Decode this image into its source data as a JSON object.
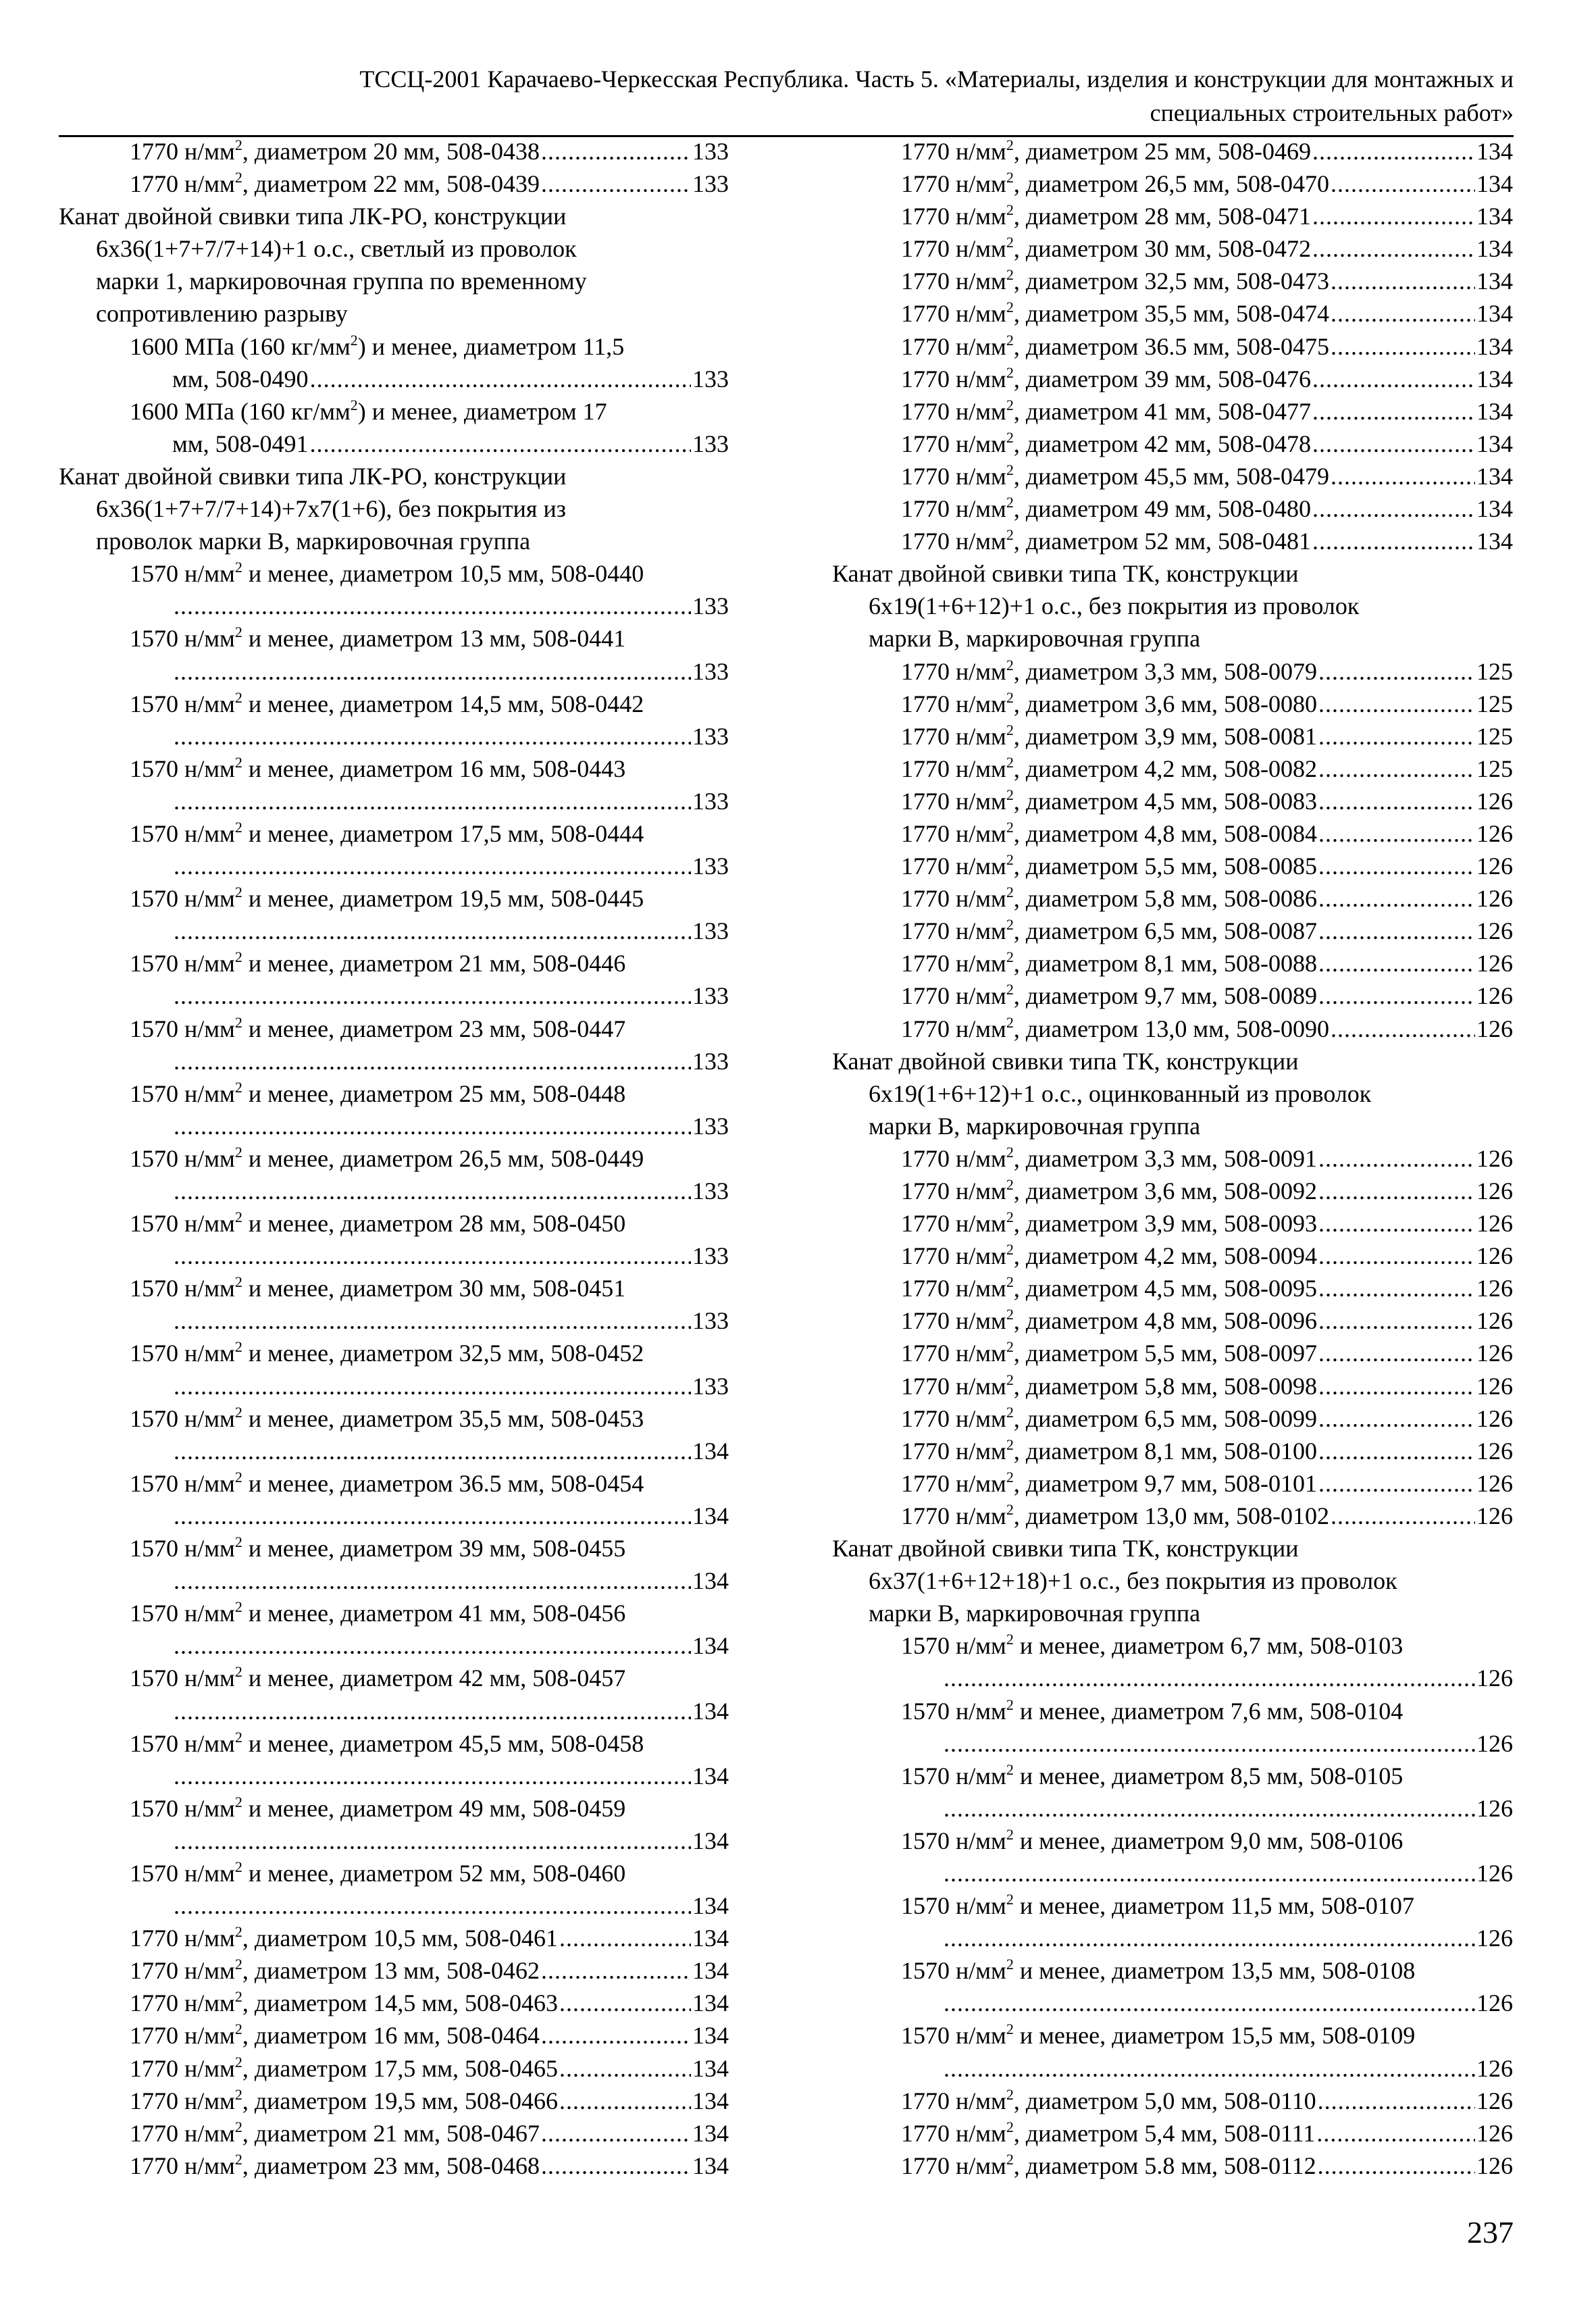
{
  "header": {
    "line1": "ТССЦ-2001 Карачаево-Черкесская Республика. Часть 5. «Материалы, изделия и конструкции для монтажных и",
    "line2": "специальных строительных работ»"
  },
  "page_number": "237",
  "columns": [
    {
      "lines": [
        {
          "k": "e",
          "i": 2,
          "t": "1770 н/мм², диаметром 20 мм, 508-0438",
          "p": "133"
        },
        {
          "k": "e",
          "i": 2,
          "t": "1770 н/мм², диаметром 22 мм, 508-0439",
          "p": "133"
        },
        {
          "k": "h",
          "i": 0,
          "t": "Канат двойной свивки типа ЛК-РО, конструкции"
        },
        {
          "k": "h",
          "i": 1,
          "t": "6x36(1+7+7/7+14)+1 о.с., светлый из проволок"
        },
        {
          "k": "h",
          "i": 1,
          "t": "марки 1, маркировочная группа по временному"
        },
        {
          "k": "h",
          "i": 1,
          "t": "сопротивлению разрыву"
        },
        {
          "k": "h",
          "i": 2,
          "t": "1600 МПа (160 кг/мм²) и менее, диаметром 11,5"
        },
        {
          "k": "e",
          "i": 3,
          "t": "мм, 508-0490",
          "p": "133"
        },
        {
          "k": "h",
          "i": 2,
          "t": "1600 МПа (160 кг/мм²) и менее, диаметром 17"
        },
        {
          "k": "e",
          "i": 3,
          "t": "мм, 508-0491",
          "p": "133"
        },
        {
          "k": "h",
          "i": 0,
          "t": "Канат двойной свивки типа ЛК-РО, конструкции"
        },
        {
          "k": "h",
          "i": 1,
          "t": "6x36(1+7+7/7+14)+7x7(1+6), без покрытия из"
        },
        {
          "k": "h",
          "i": 1,
          "t": "проволок марки В, маркировочная группа"
        },
        {
          "k": "h",
          "i": 2,
          "t": "1570 н/мм² и менее, диаметром 10,5 мм, 508-0440"
        },
        {
          "k": "e",
          "i": 3,
          "t": "",
          "p": "133"
        },
        {
          "k": "h",
          "i": 2,
          "t": "1570 н/мм² и менее, диаметром 13 мм, 508-0441"
        },
        {
          "k": "e",
          "i": 3,
          "t": "",
          "p": "133"
        },
        {
          "k": "h",
          "i": 2,
          "t": "1570 н/мм² и менее, диаметром 14,5 мм, 508-0442"
        },
        {
          "k": "e",
          "i": 3,
          "t": "",
          "p": "133"
        },
        {
          "k": "h",
          "i": 2,
          "t": "1570 н/мм² и менее, диаметром 16 мм, 508-0443"
        },
        {
          "k": "e",
          "i": 3,
          "t": "",
          "p": "133"
        },
        {
          "k": "h",
          "i": 2,
          "t": "1570 н/мм² и менее, диаметром 17,5 мм, 508-0444"
        },
        {
          "k": "e",
          "i": 3,
          "t": "",
          "p": "133"
        },
        {
          "k": "h",
          "i": 2,
          "t": "1570 н/мм² и менее, диаметром 19,5 мм, 508-0445"
        },
        {
          "k": "e",
          "i": 3,
          "t": "",
          "p": "133"
        },
        {
          "k": "h",
          "i": 2,
          "t": "1570 н/мм² и менее, диаметром 21 мм, 508-0446"
        },
        {
          "k": "e",
          "i": 3,
          "t": "",
          "p": "133"
        },
        {
          "k": "h",
          "i": 2,
          "t": "1570 н/мм² и менее, диаметром 23 мм, 508-0447"
        },
        {
          "k": "e",
          "i": 3,
          "t": "",
          "p": "133"
        },
        {
          "k": "h",
          "i": 2,
          "t": "1570 н/мм² и менее, диаметром 25 мм, 508-0448"
        },
        {
          "k": "e",
          "i": 3,
          "t": "",
          "p": "133"
        },
        {
          "k": "h",
          "i": 2,
          "t": "1570 н/мм² и менее, диаметром 26,5 мм, 508-0449"
        },
        {
          "k": "e",
          "i": 3,
          "t": "",
          "p": "133"
        },
        {
          "k": "h",
          "i": 2,
          "t": "1570 н/мм² и менее, диаметром 28 мм, 508-0450"
        },
        {
          "k": "e",
          "i": 3,
          "t": "",
          "p": "133"
        },
        {
          "k": "h",
          "i": 2,
          "t": "1570 н/мм² и менее, диаметром 30 мм, 508-0451"
        },
        {
          "k": "e",
          "i": 3,
          "t": "",
          "p": "133"
        },
        {
          "k": "h",
          "i": 2,
          "t": "1570 н/мм² и менее, диаметром 32,5 мм, 508-0452"
        },
        {
          "k": "e",
          "i": 3,
          "t": "",
          "p": "133"
        },
        {
          "k": "h",
          "i": 2,
          "t": "1570 н/мм² и менее, диаметром 35,5 мм, 508-0453"
        },
        {
          "k": "e",
          "i": 3,
          "t": "",
          "p": "134"
        },
        {
          "k": "h",
          "i": 2,
          "t": "1570 н/мм² и менее, диаметром 36.5 мм, 508-0454"
        },
        {
          "k": "e",
          "i": 3,
          "t": "",
          "p": "134"
        },
        {
          "k": "h",
          "i": 2,
          "t": "1570 н/мм² и менее, диаметром 39 мм, 508-0455"
        },
        {
          "k": "e",
          "i": 3,
          "t": "",
          "p": "134"
        },
        {
          "k": "h",
          "i": 2,
          "t": "1570 н/мм² и менее, диаметром 41 мм, 508-0456"
        },
        {
          "k": "e",
          "i": 3,
          "t": "",
          "p": "134"
        },
        {
          "k": "h",
          "i": 2,
          "t": "1570 н/мм² и менее, диаметром 42 мм, 508-0457"
        },
        {
          "k": "e",
          "i": 3,
          "t": "",
          "p": "134"
        },
        {
          "k": "h",
          "i": 2,
          "t": "1570 н/мм² и менее, диаметром 45,5 мм, 508-0458"
        },
        {
          "k": "e",
          "i": 3,
          "t": "",
          "p": "134"
        },
        {
          "k": "h",
          "i": 2,
          "t": "1570 н/мм² и менее, диаметром 49 мм, 508-0459"
        },
        {
          "k": "e",
          "i": 3,
          "t": "",
          "p": "134"
        },
        {
          "k": "h",
          "i": 2,
          "t": "1570 н/мм² и менее, диаметром 52 мм, 508-0460"
        },
        {
          "k": "e",
          "i": 3,
          "t": "",
          "p": "134"
        },
        {
          "k": "e",
          "i": 2,
          "t": "1770 н/мм², диаметром 10,5 мм, 508-0461",
          "p": "134"
        },
        {
          "k": "e",
          "i": 2,
          "t": "1770 н/мм², диаметром 13 мм, 508-0462",
          "p": "134"
        },
        {
          "k": "e",
          "i": 2,
          "t": "1770 н/мм², диаметром 14,5 мм, 508-0463",
          "p": "134"
        },
        {
          "k": "e",
          "i": 2,
          "t": "1770 н/мм², диаметром 16 мм, 508-0464",
          "p": "134"
        },
        {
          "k": "e",
          "i": 2,
          "t": "1770 н/мм², диаметром 17,5 мм, 508-0465",
          "p": "134"
        },
        {
          "k": "e",
          "i": 2,
          "t": "1770 н/мм², диаметром 19,5 мм, 508-0466",
          "p": "134"
        },
        {
          "k": "e",
          "i": 2,
          "t": "1770 н/мм², диаметром 21 мм, 508-0467",
          "p": "134"
        },
        {
          "k": "e",
          "i": 2,
          "t": "1770 н/мм², диаметром 23 мм, 508-0468",
          "p": "134"
        }
      ]
    },
    {
      "lines": [
        {
          "k": "e",
          "i": 2,
          "t": "1770 н/мм², диаметром 25 мм, 508-0469",
          "p": "134"
        },
        {
          "k": "e",
          "i": 2,
          "t": "1770 н/мм², диаметром 26,5 мм, 508-0470",
          "p": "134"
        },
        {
          "k": "e",
          "i": 2,
          "t": "1770 н/мм², диаметром 28 мм, 508-0471",
          "p": "134"
        },
        {
          "k": "e",
          "i": 2,
          "t": "1770 н/мм², диаметром 30 мм, 508-0472",
          "p": "134"
        },
        {
          "k": "e",
          "i": 2,
          "t": "1770 н/мм², диаметром 32,5 мм, 508-0473",
          "p": "134"
        },
        {
          "k": "e",
          "i": 2,
          "t": "1770 н/мм², диаметром 35,5 мм, 508-0474",
          "p": "134"
        },
        {
          "k": "e",
          "i": 2,
          "t": "1770 н/мм², диаметром 36.5 мм, 508-0475",
          "p": "134"
        },
        {
          "k": "e",
          "i": 2,
          "t": "1770 н/мм², диаметром 39 мм, 508-0476",
          "p": "134"
        },
        {
          "k": "e",
          "i": 2,
          "t": "1770 н/мм², диаметром 41 мм, 508-0477",
          "p": "134"
        },
        {
          "k": "e",
          "i": 2,
          "t": "1770 н/мм², диаметром 42 мм, 508-0478",
          "p": "134"
        },
        {
          "k": "e",
          "i": 2,
          "t": "1770 н/мм², диаметром 45,5 мм, 508-0479",
          "p": "134"
        },
        {
          "k": "e",
          "i": 2,
          "t": "1770 н/мм², диаметром 49 мм, 508-0480",
          "p": "134"
        },
        {
          "k": "e",
          "i": 2,
          "t": "1770 н/мм², диаметром 52 мм, 508-0481",
          "p": "134"
        },
        {
          "k": "h",
          "i": 0,
          "t": "Канат двойной свивки типа ТК, конструкции"
        },
        {
          "k": "h",
          "i": 1,
          "t": "6x19(1+6+12)+1 о.с., без покрытия из проволок"
        },
        {
          "k": "h",
          "i": 1,
          "t": "марки В, маркировочная группа"
        },
        {
          "k": "e",
          "i": 2,
          "t": "1770 н/мм², диаметром 3,3 мм, 508-0079",
          "p": "125"
        },
        {
          "k": "e",
          "i": 2,
          "t": "1770 н/мм², диаметром 3,6 мм, 508-0080",
          "p": "125"
        },
        {
          "k": "e",
          "i": 2,
          "t": "1770 н/мм², диаметром 3,9 мм, 508-0081",
          "p": "125"
        },
        {
          "k": "e",
          "i": 2,
          "t": "1770 н/мм², диаметром 4,2 мм, 508-0082",
          "p": "125"
        },
        {
          "k": "e",
          "i": 2,
          "t": "1770 н/мм², диаметром 4,5 мм, 508-0083",
          "p": "126"
        },
        {
          "k": "e",
          "i": 2,
          "t": "1770 н/мм², диаметром 4,8 мм, 508-0084",
          "p": "126"
        },
        {
          "k": "e",
          "i": 2,
          "t": "1770 н/мм², диаметром 5,5 мм, 508-0085",
          "p": "126"
        },
        {
          "k": "e",
          "i": 2,
          "t": "1770 н/мм², диаметром 5,8 мм, 508-0086",
          "p": "126"
        },
        {
          "k": "e",
          "i": 2,
          "t": "1770 н/мм², диаметром 6,5 мм, 508-0087",
          "p": "126"
        },
        {
          "k": "e",
          "i": 2,
          "t": "1770 н/мм², диаметром 8,1 мм, 508-0088",
          "p": "126"
        },
        {
          "k": "e",
          "i": 2,
          "t": "1770 н/мм², диаметром 9,7 мм, 508-0089",
          "p": "126"
        },
        {
          "k": "e",
          "i": 2,
          "t": "1770 н/мм², диаметром 13,0 мм, 508-0090",
          "p": "126"
        },
        {
          "k": "h",
          "i": 0,
          "t": "Канат двойной свивки типа ТК, конструкции"
        },
        {
          "k": "h",
          "i": 1,
          "t": "6x19(1+6+12)+1 о.с., оцинкованный из проволок"
        },
        {
          "k": "h",
          "i": 1,
          "t": "марки В, маркировочная группа"
        },
        {
          "k": "e",
          "i": 2,
          "t": "1770 н/мм², диаметром 3,3 мм, 508-0091",
          "p": "126"
        },
        {
          "k": "e",
          "i": 2,
          "t": "1770 н/мм², диаметром 3,6 мм, 508-0092",
          "p": "126"
        },
        {
          "k": "e",
          "i": 2,
          "t": "1770 н/мм², диаметром 3,9 мм, 508-0093",
          "p": "126"
        },
        {
          "k": "e",
          "i": 2,
          "t": "1770 н/мм², диаметром 4,2 мм, 508-0094",
          "p": "126"
        },
        {
          "k": "e",
          "i": 2,
          "t": "1770 н/мм², диаметром 4,5 мм, 508-0095",
          "p": "126"
        },
        {
          "k": "e",
          "i": 2,
          "t": "1770 н/мм², диаметром 4,8 мм, 508-0096",
          "p": "126"
        },
        {
          "k": "e",
          "i": 2,
          "t": "1770 н/мм², диаметром 5,5 мм, 508-0097",
          "p": "126"
        },
        {
          "k": "e",
          "i": 2,
          "t": "1770 н/мм², диаметром 5,8 мм, 508-0098",
          "p": "126"
        },
        {
          "k": "e",
          "i": 2,
          "t": "1770 н/мм², диаметром 6,5 мм, 508-0099",
          "p": "126"
        },
        {
          "k": "e",
          "i": 2,
          "t": "1770 н/мм², диаметром 8,1 мм, 508-0100",
          "p": "126"
        },
        {
          "k": "e",
          "i": 2,
          "t": "1770 н/мм², диаметром 9,7 мм, 508-0101",
          "p": "126"
        },
        {
          "k": "e",
          "i": 2,
          "t": "1770 н/мм², диаметром 13,0 мм, 508-0102",
          "p": "126"
        },
        {
          "k": "h",
          "i": 0,
          "t": "Канат двойной свивки типа ТК, конструкции"
        },
        {
          "k": "h",
          "i": 1,
          "t": "6x37(1+6+12+18)+1 о.с., без покрытия из проволок"
        },
        {
          "k": "h",
          "i": 1,
          "t": "марки В, маркировочная группа"
        },
        {
          "k": "h",
          "i": 2,
          "t": "1570 н/мм² и менее, диаметром 6,7 мм, 508-0103"
        },
        {
          "k": "e",
          "i": 3,
          "t": "",
          "p": "126"
        },
        {
          "k": "h",
          "i": 2,
          "t": "1570 н/мм² и менее, диаметром 7,6 мм, 508-0104"
        },
        {
          "k": "e",
          "i": 3,
          "t": "",
          "p": "126"
        },
        {
          "k": "h",
          "i": 2,
          "t": "1570 н/мм² и менее, диаметром 8,5 мм, 508-0105"
        },
        {
          "k": "e",
          "i": 3,
          "t": "",
          "p": "126"
        },
        {
          "k": "h",
          "i": 2,
          "t": "1570 н/мм² и менее, диаметром 9,0 мм, 508-0106"
        },
        {
          "k": "e",
          "i": 3,
          "t": "",
          "p": "126"
        },
        {
          "k": "h",
          "i": 2,
          "t": "1570 н/мм² и менее, диаметром 11,5 мм, 508-0107"
        },
        {
          "k": "e",
          "i": 3,
          "t": "",
          "p": "126"
        },
        {
          "k": "h",
          "i": 2,
          "t": "1570 н/мм² и менее, диаметром 13,5 мм, 508-0108"
        },
        {
          "k": "e",
          "i": 3,
          "t": "",
          "p": "126"
        },
        {
          "k": "h",
          "i": 2,
          "t": "1570 н/мм² и менее, диаметром 15,5 мм, 508-0109"
        },
        {
          "k": "e",
          "i": 3,
          "t": "",
          "p": "126"
        },
        {
          "k": "e",
          "i": 2,
          "t": "1770 н/мм², диаметром 5,0 мм, 508-0110",
          "p": "126"
        },
        {
          "k": "e",
          "i": 2,
          "t": "1770 н/мм², диаметром 5,4 мм, 508-0111",
          "p": "126"
        },
        {
          "k": "e",
          "i": 2,
          "t": "1770 н/мм², диаметром 5.8 мм, 508-0112",
          "p": "126"
        }
      ]
    }
  ]
}
